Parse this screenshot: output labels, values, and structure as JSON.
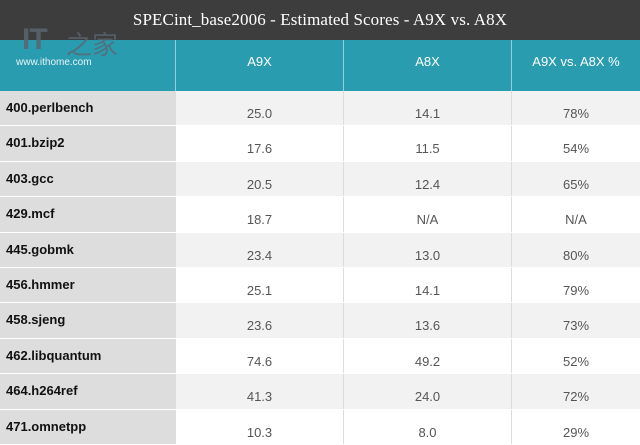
{
  "title": "SPECint_base2006 - Estimated Scores - A9X vs. A8X",
  "logo": {
    "text": "IT之家",
    "url": "www.ithome.com"
  },
  "columns": [
    "",
    "A9X",
    "A8X",
    "A9X vs. A8X %"
  ],
  "rows": [
    {
      "name": "400.perlbench",
      "a9x": "25.0",
      "a8x": "14.1",
      "pct": "78%"
    },
    {
      "name": "401.bzip2",
      "a9x": "17.6",
      "a8x": "11.5",
      "pct": "54%"
    },
    {
      "name": "403.gcc",
      "a9x": "20.5",
      "a8x": "12.4",
      "pct": "65%"
    },
    {
      "name": "429.mcf",
      "a9x": "18.7",
      "a8x": "N/A",
      "pct": "N/A"
    },
    {
      "name": "445.gobmk",
      "a9x": "23.4",
      "a8x": "13.0",
      "pct": "80%"
    },
    {
      "name": "456.hmmer",
      "a9x": "25.1",
      "a8x": "14.1",
      "pct": "79%"
    },
    {
      "name": "458.sjeng",
      "a9x": "23.6",
      "a8x": "13.6",
      "pct": "73%"
    },
    {
      "name": "462.libquantum",
      "a9x": "74.6",
      "a8x": "49.2",
      "pct": "52%"
    },
    {
      "name": "464.h264ref",
      "a9x": "41.3",
      "a8x": "24.0",
      "pct": "72%"
    },
    {
      "name": "471.omnetpp",
      "a9x": "10.3",
      "a8x": "8.0",
      "pct": "29%"
    }
  ],
  "colors": {
    "title_bg": "#3d3d3d",
    "header_bg": "#2a9cb0",
    "name_col_bg": "#dddddd",
    "stripe_bg": "#f2f2f2"
  }
}
